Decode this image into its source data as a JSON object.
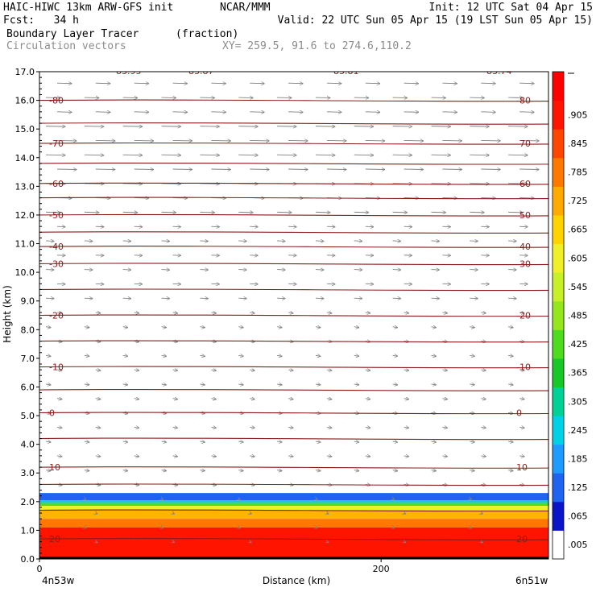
{
  "header": {
    "model": "HAIC-HIWC 13km ARW-GFS init",
    "org": "NCAR/MMM",
    "init": "Init: 12 UTC Sat 04 Apr 15",
    "fcst": "Fcst:   34 h",
    "valid": "Valid: 22 UTC Sun 05 Apr 15 (19 LST Sun 05 Apr 15)",
    "field": "Boundary Layer Tracer",
    "units": "(fraction)",
    "vectors": "Circulation vectors",
    "xy": "XY= 259.5, 91.6 to 274.6,110.2"
  },
  "chart_data": {
    "type": "heatmap",
    "xlabel": "Distance (km)",
    "ylabel": "Height (km)",
    "xlim": [
      0,
      298
    ],
    "ylim": [
      0,
      17
    ],
    "x_ticks": [
      {
        "value": 0,
        "label": "0"
      },
      {
        "value": 200,
        "label": "200"
      }
    ],
    "x_end_labels": {
      "left": "4n53w",
      "right": "6n51w"
    },
    "y_ticks": [
      "0.0",
      "1.0",
      "2.0",
      "3.0",
      "4.0",
      "5.0",
      "6.0",
      "7.0",
      "8.0",
      "9.0",
      "10.0",
      "11.0",
      "12.0",
      "13.0",
      "14.0",
      "15.0",
      "16.0",
      "17.0"
    ],
    "colorbar": {
      "labels": [
        ".005",
        ".065",
        ".125",
        ".185",
        ".245",
        ".305",
        ".365",
        ".425",
        ".485",
        ".545",
        ".605",
        ".665",
        ".725",
        ".785",
        ".845",
        ".905"
      ],
      "colors": [
        "#ffffff",
        "#0a14c8",
        "#1e64f0",
        "#1e9bff",
        "#00d2e6",
        "#00d296",
        "#18c828",
        "#50dc1e",
        "#96e61e",
        "#c8f028",
        "#f0f028",
        "#ffd200",
        "#ffaa00",
        "#ff7800",
        "#ff4600",
        "#ff1400",
        "#ff0000"
      ]
    },
    "tracer": {
      "top_km": 2.3,
      "bands": [
        {
          "from": 2.05,
          "to": 2.3,
          "color": "#1e64f0"
        },
        {
          "from": 1.95,
          "to": 2.05,
          "color": "#1ec8d2"
        },
        {
          "from": 1.85,
          "to": 1.95,
          "color": "#50dc1e"
        },
        {
          "from": 1.7,
          "to": 1.85,
          "color": "#f0f028"
        },
        {
          "from": 1.4,
          "to": 1.7,
          "color": "#ffb400"
        },
        {
          "from": 1.1,
          "to": 1.4,
          "color": "#ff7800"
        },
        {
          "from": 0.0,
          "to": 1.1,
          "color": "#ff1400"
        }
      ]
    },
    "temperature_contours": [
      {
        "height_km": 0.7,
        "label": "20"
      },
      {
        "height_km": 1.7,
        "label": ""
      },
      {
        "height_km": 2.6,
        "label": ""
      },
      {
        "height_km": 3.2,
        "label": "10"
      },
      {
        "height_km": 4.2,
        "label": ""
      },
      {
        "height_km": 5.1,
        "label": "0"
      },
      {
        "height_km": 5.9,
        "label": ""
      },
      {
        "height_km": 6.7,
        "label": "-10"
      },
      {
        "height_km": 7.6,
        "label": ""
      },
      {
        "height_km": 8.5,
        "label": "-20"
      },
      {
        "height_km": 9.4,
        "label": ""
      },
      {
        "height_km": 10.3,
        "label": "-30"
      },
      {
        "height_km": 11.4,
        "label": ""
      },
      {
        "height_km": 10.9,
        "label": "-40"
      },
      {
        "height_km": 12.0,
        "label": "-50"
      },
      {
        "height_km": 12.6,
        "label": ""
      },
      {
        "height_km": 13.1,
        "label": "-60"
      },
      {
        "height_km": 13.8,
        "label": ""
      },
      {
        "height_km": 14.5,
        "label": "-70"
      },
      {
        "height_km": 15.2,
        "label": ""
      },
      {
        "height_km": 16.0,
        "label": "-80"
      }
    ],
    "top_labels": [
      "-83.95",
      "-83.87",
      "-83.81",
      "-83.74"
    ]
  }
}
